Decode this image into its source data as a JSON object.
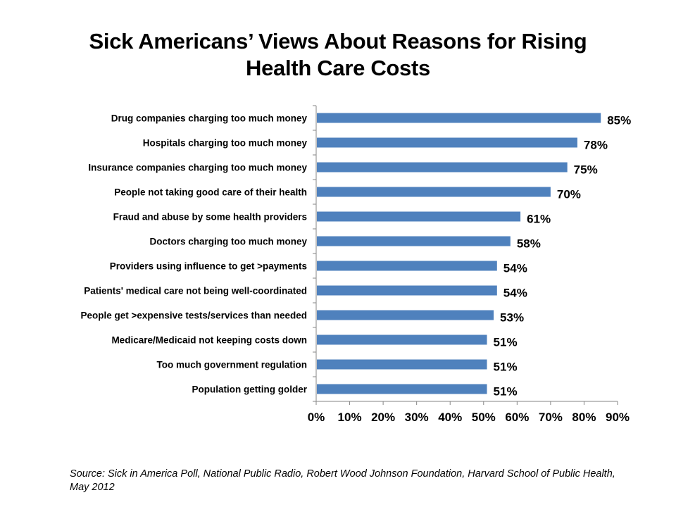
{
  "title_lines": [
    "Sick Americans’ Views About Reasons for Rising",
    "Health Care Costs"
  ],
  "source": "Source: Sick in America Poll, National Public Radio, Robert Wood Johnson Foundation, Harvard School of Public Health, May 2012",
  "colors": {
    "bar": "#4F81BD",
    "axis": "#868686",
    "text": "#000000"
  },
  "chart_data": {
    "type": "bar",
    "orientation": "horizontal",
    "title": "Sick Americans’ Views About Reasons for Rising Health Care Costs",
    "xlabel": "",
    "ylabel": "",
    "categories": [
      "Drug companies charging too much money",
      "Hospitals charging too much money",
      "Insurance companies charging too much money",
      "People not taking good care of their health",
      "Fraud and abuse by some health providers",
      "Doctors charging too much money",
      "Providers using influence to get >payments",
      "Patients' medical care not being well-coordinated",
      "People get >expensive tests/services than needed",
      "Medicare/Medicaid not keeping costs down",
      "Too much government regulation",
      "Population getting golder"
    ],
    "values": [
      85,
      78,
      75,
      70,
      61,
      58,
      54,
      54,
      53,
      51,
      51,
      51
    ],
    "value_labels": [
      "85%",
      "78%",
      "75%",
      "70%",
      "61%",
      "58%",
      "54%",
      "54%",
      "53%",
      "51%",
      "51%",
      "51%"
    ],
    "xlim": [
      0,
      90
    ],
    "xticks": [
      0,
      10,
      20,
      30,
      40,
      50,
      60,
      70,
      80,
      90
    ],
    "xtick_labels": [
      "0%",
      "10%",
      "20%",
      "30%",
      "40%",
      "50%",
      "60%",
      "70%",
      "80%",
      "90%"
    ],
    "grid": false,
    "legend": "none"
  }
}
